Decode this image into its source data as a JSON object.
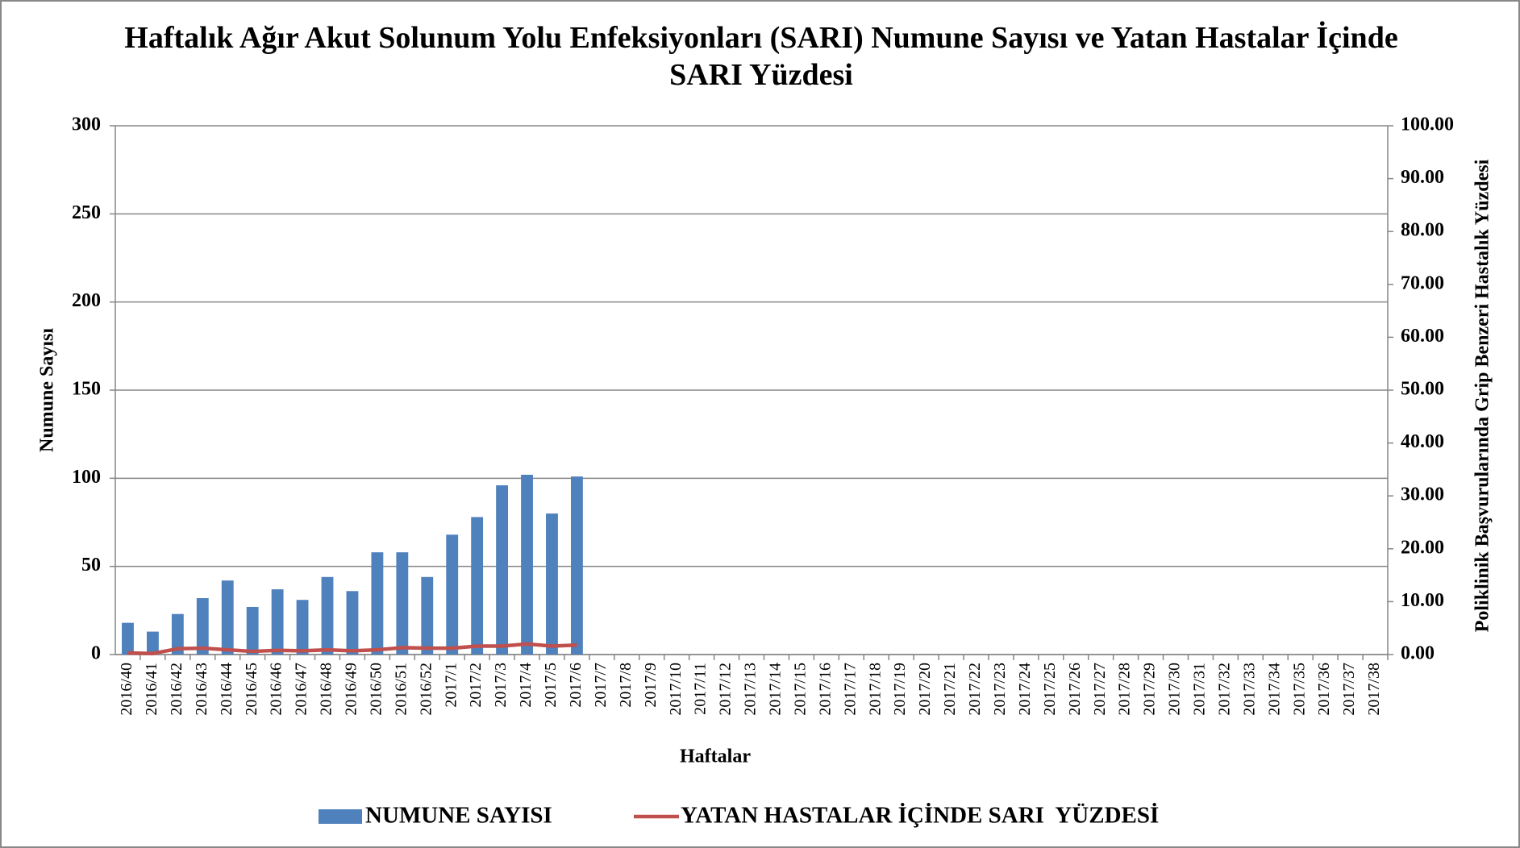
{
  "chart_data": {
    "type": "bar",
    "title": "Haftalık Ağır Akut Solunum Yolu Enfeksiyonları (SARI) Numune Sayısı ve Yatan Hastalar İçinde SARI Yüzdesi",
    "xlabel": "Haftalar",
    "ylabel": "Numune  Sayısı",
    "y2label": "Poliklinik Başvurularında Grip Benzeri Hastalık Yüzdesi",
    "categories": [
      "2016/40",
      "2016/41",
      "2016/42",
      "2016/43",
      "2016/44",
      "2016/45",
      "2016/46",
      "2016/47",
      "2016/48",
      "2016/49",
      "2016/50",
      "2016/51",
      "2016/52",
      "2017/1",
      "2017/2",
      "2017/3",
      "2017/4",
      "2017/5",
      "2017/6",
      "2017/7",
      "2017/8",
      "2017/9",
      "2017/10",
      "2017/11",
      "2017/12",
      "2017/13",
      "2017/14",
      "2017/15",
      "2017/16",
      "2017/17",
      "2017/18",
      "2017/19",
      "2017/20",
      "2017/21",
      "2017/22",
      "2017/23",
      "2017/24",
      "2017/25",
      "2017/26",
      "2017/27",
      "2017/28",
      "2017/29",
      "2017/30",
      "2017/31",
      "2017/32",
      "2017/33",
      "2017/34",
      "2017/35",
      "2017/36",
      "2017/37",
      "2017/38"
    ],
    "series": [
      {
        "name": "NUMUNE SAYISI",
        "type": "bar",
        "color": "#4f81bd",
        "values": [
          18,
          13,
          23,
          32,
          42,
          27,
          37,
          31,
          44,
          36,
          58,
          58,
          44,
          68,
          78,
          96,
          102,
          80,
          101,
          null,
          null,
          null,
          null,
          null,
          null,
          null,
          null,
          null,
          null,
          null,
          null,
          null,
          null,
          null,
          null,
          null,
          null,
          null,
          null,
          null,
          null,
          null,
          null,
          null,
          null,
          null,
          null,
          null,
          null,
          null,
          null
        ]
      },
      {
        "name": "YATAN HASTALAR İÇİNDE SARI  YÜZDESİ",
        "type": "line",
        "axis": "y2",
        "color": "#c0504d",
        "values": [
          0.3,
          0.2,
          1.1,
          1.2,
          0.9,
          0.6,
          0.8,
          0.7,
          0.9,
          0.7,
          0.9,
          1.3,
          1.2,
          1.2,
          1.6,
          1.6,
          2.0,
          1.6,
          1.8,
          null,
          null,
          null,
          null,
          null,
          null,
          null,
          null,
          null,
          null,
          null,
          null,
          null,
          null,
          null,
          null,
          null,
          null,
          null,
          null,
          null,
          null,
          null,
          null,
          null,
          null,
          null,
          null,
          null,
          null,
          null,
          null
        ]
      }
    ],
    "ylim": [
      0,
      300
    ],
    "yticks": [
      0,
      50,
      100,
      150,
      200,
      250,
      300
    ],
    "y2lim": [
      0,
      100
    ],
    "y2ticks": [
      {
        "value": 0,
        "label": "0.00"
      },
      {
        "value": 10,
        "label": "10.00"
      },
      {
        "value": 20,
        "label": "20.00"
      },
      {
        "value": 30,
        "label": "30.00"
      },
      {
        "value": 40,
        "label": "40.00"
      },
      {
        "value": 50,
        "label": "50.00"
      },
      {
        "value": 60,
        "label": "60.00"
      },
      {
        "value": 70,
        "label": "70.00"
      },
      {
        "value": 80,
        "label": "80.00"
      },
      {
        "value": 90,
        "label": "90.00"
      },
      {
        "value": 100,
        "label": "100.00"
      }
    ],
    "grid": true,
    "legend": "bottom"
  }
}
